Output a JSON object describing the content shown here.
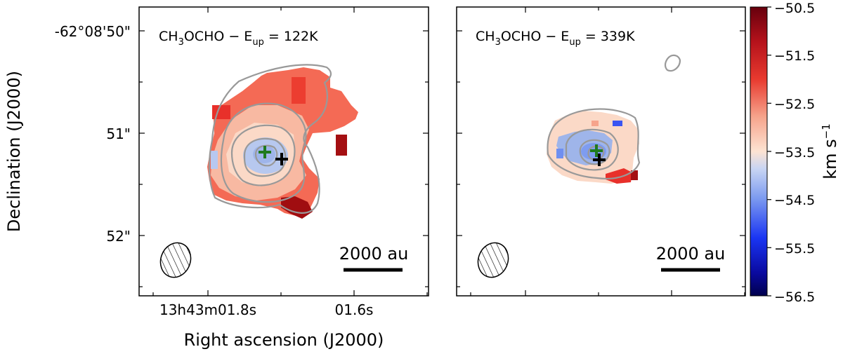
{
  "figure": {
    "ylabel": "Declination (J2000)",
    "xlabel": "Right ascension (J2000)",
    "colorbar_label": "km s",
    "colorbar_label_exp": "−1"
  },
  "chart_data": [
    {
      "type": "heatmap",
      "panel": "left",
      "title_species": "CH",
      "title_sub1": "3",
      "title_species2": "OCHO",
      "title_eup": " − E",
      "title_sub2": "up",
      "title_value": " = 122K",
      "yticks": [
        "-62°08'50\"",
        "51\"",
        "52\""
      ],
      "xticks": [
        "13h43m01.8s",
        "01.6s"
      ],
      "scalebar_label": "2000 au",
      "markers": [
        {
          "name": "green-cross",
          "color": "#1f7a1f"
        },
        {
          "name": "black-cross",
          "color": "#000000"
        }
      ],
      "contour_color": "#999999"
    },
    {
      "type": "heatmap",
      "panel": "right",
      "title_species": "CH",
      "title_sub1": "3",
      "title_species2": "OCHO",
      "title_eup": " − E",
      "title_sub2": "up",
      "title_value": " = 339K",
      "scalebar_label": "2000 au",
      "markers": [
        {
          "name": "green-cross",
          "color": "#1f7a1f"
        },
        {
          "name": "black-cross",
          "color": "#000000"
        }
      ],
      "contour_color": "#999999"
    },
    {
      "type": "colorbar",
      "vmin": -56.5,
      "vmax": -50.5,
      "cmap": "seismic-like",
      "ticks": [
        "−50.5",
        "−51.5",
        "−52.5",
        "−53.5",
        "−54.5",
        "−55.5",
        "−56.5"
      ],
      "colors": [
        "#67000d",
        "#b5121b",
        "#e83a2f",
        "#f88b70",
        "#fde0cf",
        "#c6d4f2",
        "#6a8fee",
        "#1230f0",
        "#0b0b8f",
        "#00004d"
      ]
    }
  ]
}
